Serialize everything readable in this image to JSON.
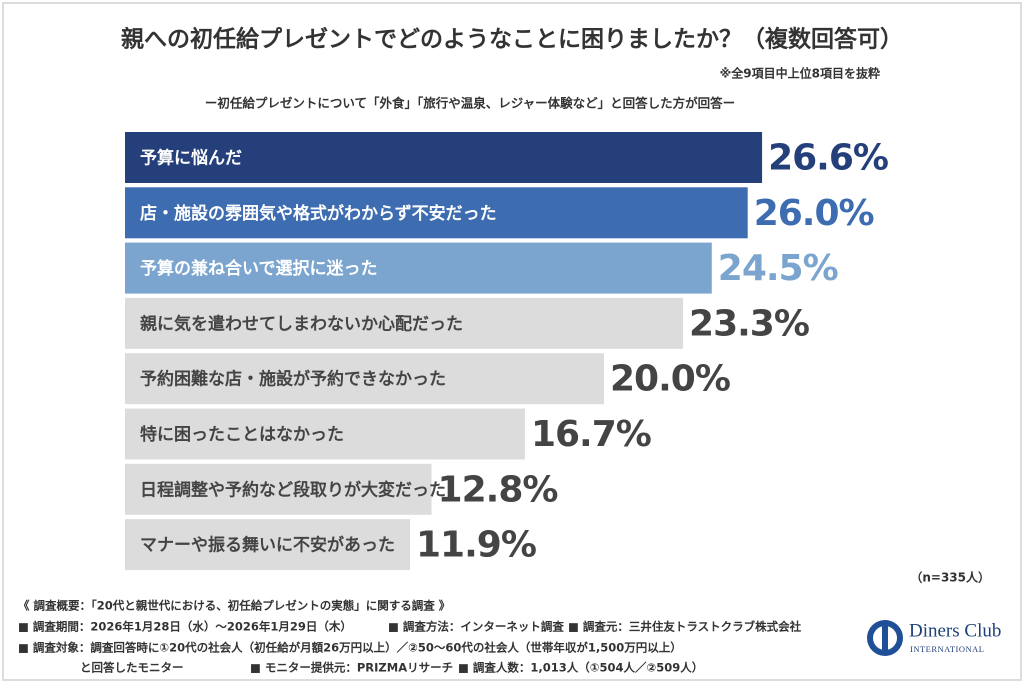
{
  "chart_data": {
    "type": "bar",
    "title": "親への初任給プレゼントでどのようなことに困りましたか？（複数回答可）",
    "note": "※全9項目中上位8項目を抜粋",
    "subtitle": "ー初任給プレゼントについて「外食」「旅行や温泉、レジャー体験など」と回答した方が回答ー",
    "categories": [
      "予算に悩んだ",
      "店・施設の雰囲気や格式がわからず不安だった",
      "予算の兼ね合いで選択に迷った",
      "親に気を遣わせてしまわないか心配だった",
      "予約困難な店・施設が予約できなかった",
      "特に困ったことはなかった",
      "日程調整や予約など段取りが大変だった",
      "マナーや振る舞いに不安があった"
    ],
    "values": [
      26.6,
      26.0,
      24.5,
      23.3,
      20.0,
      16.7,
      12.8,
      11.9
    ],
    "value_labels": [
      "26.6%",
      "26.0%",
      "24.5%",
      "23.3%",
      "20.0%",
      "16.7%",
      "12.8%",
      "11.9%"
    ],
    "colors": [
      "#243f7a",
      "#3d6cb0",
      "#7ba5cf",
      "#dcdcdc",
      "#dcdcdc",
      "#dcdcdc",
      "#dcdcdc",
      "#dcdcdc"
    ],
    "label_colors": [
      "#ffffff",
      "#ffffff",
      "#ffffff",
      "#444444",
      "#444444",
      "#444444",
      "#444444",
      "#444444"
    ],
    "value_label_colors": [
      "#243f7a",
      "#3d6cb0",
      "#7ba5cf",
      "#444444",
      "#444444",
      "#444444",
      "#444444",
      "#444444"
    ],
    "sample": "（n=335人）"
  },
  "footer": {
    "heading": "《 調査概要：「20代と親世代における、初任給プレゼントの実態」に関する調査 》",
    "period": "■ 調査期間：2026年1月28日（水）〜2026年1月29日（木）",
    "method": "■ 調査方法：インターネット調査",
    "source": "■ 調査元：三井住友トラストクラブ株式会社",
    "target": "■ 調査対象：調査回答時に①20代の社会人（初任給が月額26万円以上）／②50〜60代の社会人（世帯年収が1,500万円以上）",
    "target_cont": "と回答したモニター",
    "provider": "■ モニター提供元：PRIZMAリサーチ",
    "count": "■ 調査人数：1,013人（①504人／②509人）"
  },
  "logo": {
    "name": "Diners Club",
    "sub": "INTERNATIONAL"
  }
}
